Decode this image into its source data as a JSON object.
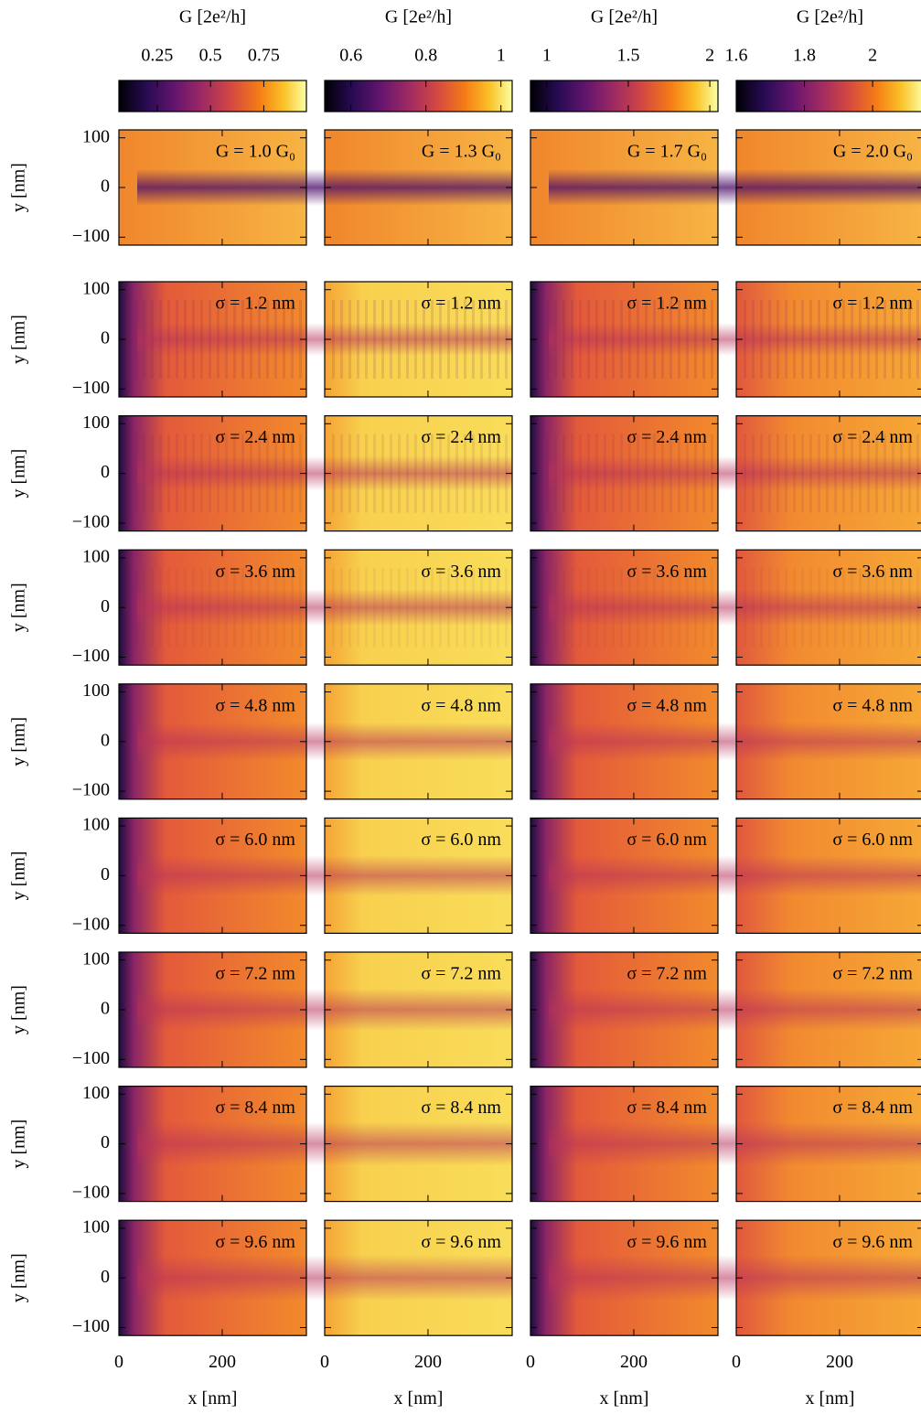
{
  "chart_data": {
    "type": "heatmap-grid",
    "colorbar_label": "G [2e²/h]",
    "xlabel": "x [nm]",
    "ylabel": "y [nm]",
    "xlim": [
      0,
      363
    ],
    "ylim": [
      -116,
      116
    ],
    "xticks": [
      0,
      200
    ],
    "yticks": [
      {
        "value": -100,
        "label": "−100"
      },
      0,
      100
    ],
    "sigma_labels": [
      "σ = 1.2 nm",
      "σ = 2.4 nm",
      "σ = 3.6 nm",
      "σ = 4.8 nm",
      "σ = 6.0 nm",
      "σ = 7.2 nm",
      "σ = 8.4 nm",
      "σ = 9.6 nm"
    ],
    "columns": [
      {
        "conductance_label": "G = 1.0 G₀",
        "clim": [
          0.07,
          0.95
        ],
        "cticks": [
          0.25,
          0.5,
          0.75
        ]
      },
      {
        "conductance_label": "G = 1.3 G₀",
        "clim": [
          0.53,
          1.03
        ],
        "cticks": [
          0.6,
          0.8,
          1
        ]
      },
      {
        "conductance_label": "G = 1.7 G₀",
        "clim": [
          0.9,
          2.05
        ],
        "cticks": [
          1,
          1.5,
          2
        ]
      },
      {
        "conductance_label": "G = 2.0 G₀",
        "clim": [
          1.6,
          2.15
        ],
        "cticks": [
          1.6,
          1.8,
          2
        ]
      }
    ]
  }
}
